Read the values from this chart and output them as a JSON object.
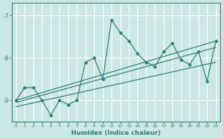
{
  "xlabel": "Humidex (Indice chaleur)",
  "ylabel": "",
  "bg_color": "#cce8e4",
  "line_color": "#2e7d72",
  "grid_color": "#ffffff",
  "x_data": [
    0,
    1,
    2,
    3,
    4,
    5,
    6,
    7,
    8,
    9,
    10,
    11,
    12,
    13,
    14,
    15,
    16,
    17,
    18,
    19,
    20,
    21,
    22,
    23
  ],
  "y_data": [
    -9.0,
    -8.7,
    -8.7,
    -9.0,
    -9.35,
    -9.0,
    -9.1,
    -9.0,
    -8.1,
    -8.0,
    -8.5,
    -7.1,
    -7.4,
    -7.6,
    -7.9,
    -8.1,
    -8.2,
    -7.85,
    -7.65,
    -8.05,
    -8.15,
    -7.85,
    -8.55,
    -7.6
  ],
  "xlim": [
    0,
    23
  ],
  "ylim": [
    -9.5,
    -6.7
  ],
  "yticks": [
    -9,
    -8,
    -7
  ],
  "xticks": [
    0,
    1,
    2,
    3,
    4,
    5,
    6,
    7,
    8,
    9,
    10,
    11,
    12,
    13,
    14,
    15,
    16,
    17,
    18,
    19,
    20,
    21,
    22,
    23
  ],
  "env_line1": [
    [
      0,
      23
    ],
    [
      -9.0,
      -7.6
    ]
  ],
  "env_line2": [
    [
      0,
      23
    ],
    [
      -9.15,
      -8.1
    ]
  ],
  "reg_line": [
    [
      0,
      23
    ],
    [
      -9.05,
      -7.75
    ]
  ]
}
